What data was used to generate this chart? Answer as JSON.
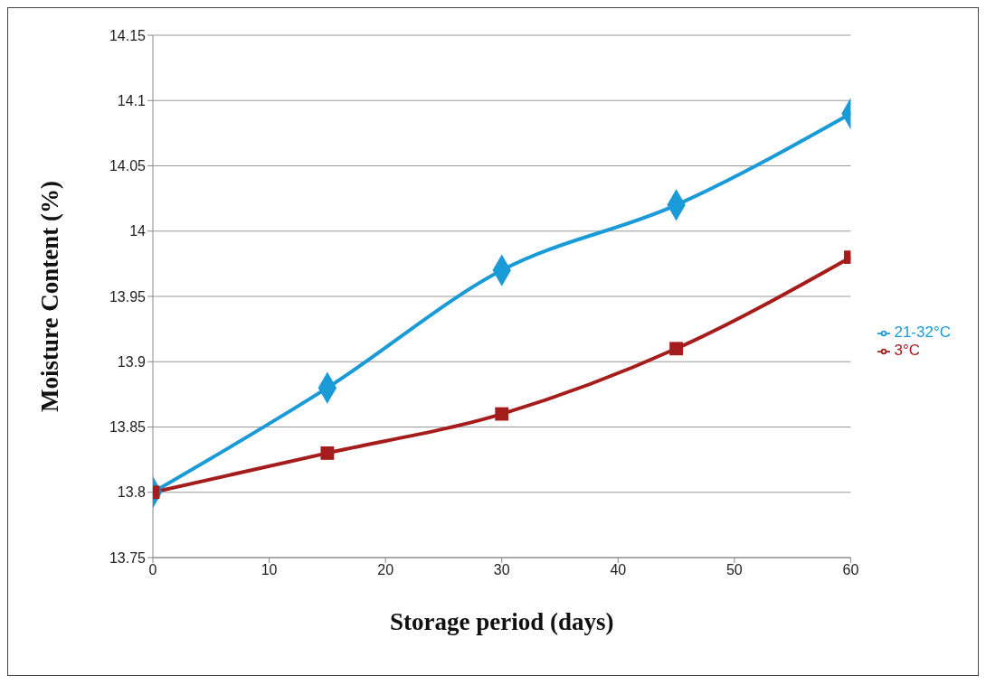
{
  "chart_data": {
    "type": "line",
    "xlabel": "Storage period (days)",
    "ylabel": "Moisture Content (%)",
    "x": [
      0,
      15,
      30,
      45,
      60
    ],
    "series": [
      {
        "name": "21-32°C",
        "color": "#1a9ad6",
        "marker": "diamond",
        "values": [
          13.8,
          13.88,
          13.97,
          14.02,
          14.09
        ]
      },
      {
        "name": "3°C",
        "color": "#a51c1c",
        "marker": "square",
        "values": [
          13.8,
          13.83,
          13.86,
          13.91,
          13.98
        ]
      }
    ],
    "xlim": [
      0,
      60
    ],
    "xticks": [
      0,
      10,
      20,
      30,
      40,
      50,
      60
    ],
    "ylim": [
      13.75,
      14.15
    ],
    "yticks": [
      13.75,
      13.8,
      13.85,
      13.9,
      13.95,
      14,
      14.05,
      14.1,
      14.15
    ],
    "grid": "y",
    "legend": "right",
    "line_style": "solid"
  }
}
